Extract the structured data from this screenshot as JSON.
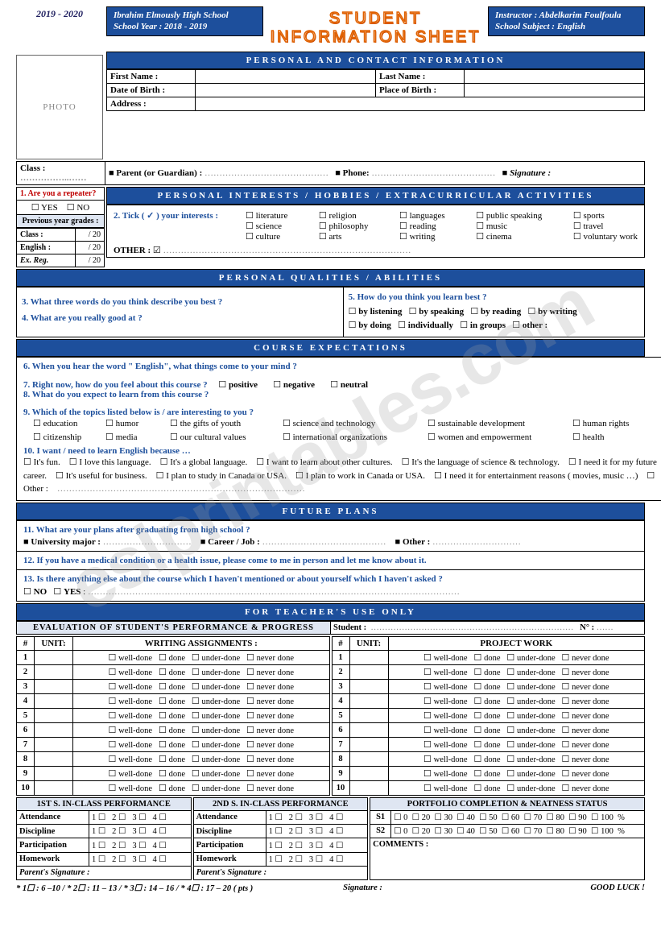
{
  "watermark": "eslprintables.com",
  "year_range": "2019 - 2020",
  "school_line1": "Ibrahim Elmously High School",
  "school_line2": "School Year : 2018 - 2019",
  "main_title": "STUDENT INFORMATION SHEET",
  "instr_line1": "Instructor : Abdelkarim Foulfoula",
  "instr_line2": "School Subject  :  English",
  "photo": "PHOTO",
  "sec1": "PERSONAL AND CONTACT INFORMATION",
  "first_name": "First Name :",
  "last_name": "Last Name :",
  "dob": "Date of Birth :",
  "pob": "Place of Birth :",
  "address": "Address :",
  "class": "Class :",
  "dots_short": "……………..……",
  "parent": "Parent (or Guardian) :",
  "phone": "Phone:",
  "signature": "Signature :",
  "q1": "1. Are you a repeater?",
  "yes": "YES",
  "no": "NO",
  "prev_grades": "Previous year grades :",
  "grade_class": "Class     :",
  "grade_english": "English  :",
  "grade_exreg": "Ex.  Reg.",
  "over20": "/ 20",
  "sec2": "PERSONAL INTERESTS   /   HOBBIES / EXTRACURRICULAR ACTIVITIES",
  "q2": "2. Tick ( ✓ ) your interests :",
  "interests": {
    "c1": [
      "literature",
      "science",
      "culture"
    ],
    "c2": [
      "religion",
      "philosophy",
      "arts"
    ],
    "c3": [
      "languages",
      "reading",
      "writing"
    ],
    "c4": [
      "public speaking",
      "music",
      "cinema"
    ],
    "c5": [
      "sports",
      "travel",
      "voluntary work"
    ]
  },
  "other": "OTHER :",
  "sec3": "PERSONAL  QUALITIES / ABILITIES",
  "q3": "3. What three words do you think describe you best ?",
  "q4": "4. What are you really good at ?",
  "q5": "5. How do you think you learn best ?",
  "learn": [
    "by listening",
    "by speaking",
    "by reading",
    "by writing",
    "by doing",
    "individually",
    "in groups",
    "other :"
  ],
  "sec4": "COURSE EXPECTATIONS",
  "q6": "6. When you hear the word \" English\", what things come to your mind ?",
  "q7": "7. Right now, how do you feel about this course ?",
  "feel": [
    "positive",
    "negative",
    "neutral"
  ],
  "q8": "8. What do you expect to learn from this course ?",
  "q9": "9. Which of the topics listed below is / are interesting to you ?",
  "topics": {
    "r1": [
      "education",
      "humor",
      "the gifts of youth",
      "science and technology",
      "sustainable development",
      "human rights"
    ],
    "r2": [
      "citizenship",
      "media",
      "our cultural values",
      "international organizations",
      "women and empowerment",
      "health"
    ]
  },
  "q10": "10. I want / need  to learn  English because …",
  "reasons": [
    "It's fun.",
    "I love this language.",
    "It's a global language.",
    "I want to learn about other cultures.",
    "It's the language of science & technology.",
    "I need it for my future career.",
    "It's useful for business.",
    "I plan to study in Canada or USA.",
    "I plan to work in Canada or USA.",
    "I need it for entertainment reasons ( movies, music …)",
    "Other :"
  ],
  "sec5": "FUTURE PLANS",
  "q11": "11. What are your plans after graduating from high school ?",
  "uni": "University major :",
  "career": "Career / Job  :",
  "other2": "Other :",
  "q12": "12. If you have a medical condition or a  health issue, please come to me in person and let me know about it.",
  "q13": "13. Is there anything else about the course which I haven't mentioned or about yourself which I haven't asked ?",
  "sec6": "FOR TEACHER'S USE ONLY",
  "eval_hdr": "EVALUATION OF STUDENT'S PERFORMANCE & PROGRESS",
  "student": "Student :",
  "num": "N°  :",
  "hash": "#",
  "unit": "UNIT:",
  "writing": "WRITING ASSIGNMENTS :",
  "project": "PROJECT WORK",
  "ratings": [
    "well-done",
    "done",
    "under-done",
    "never done"
  ],
  "rows": [
    "1",
    "2",
    "3",
    "4",
    "5",
    "6",
    "7",
    "8",
    "9",
    "10"
  ],
  "inclass1": "1ST S. IN-CLASS PERFORMANCE",
  "inclass2": "2ND S.  IN-CLASS PERFORMANCE",
  "portfolio": "PORTFOLIO COMPLETION & NEATNESS STATUS",
  "perf_rows": [
    "Attendance",
    "Discipline",
    "Participation",
    "Homework"
  ],
  "scale": [
    "1",
    "2",
    "3",
    "4"
  ],
  "s1": "S1",
  "s2": "S2",
  "pct": [
    "0",
    "20",
    "30",
    "40",
    "50",
    "60",
    "70",
    "80",
    "90",
    "100"
  ],
  "pct_suffix": "%",
  "comments": "COMMENTS :",
  "psig": "Parent's Signature :",
  "legend": "* 1☐ : 6 –10  /  * 2☐ : 11 – 13  /  * 3☐ :  14 – 16  /  * 4☐ :  17 – 20   ( pts )",
  "siglabel": "Signature  :",
  "goodluck": "GOOD LUCK  !",
  "dots_long": "……………………………………",
  "dots_med": "…………………………"
}
